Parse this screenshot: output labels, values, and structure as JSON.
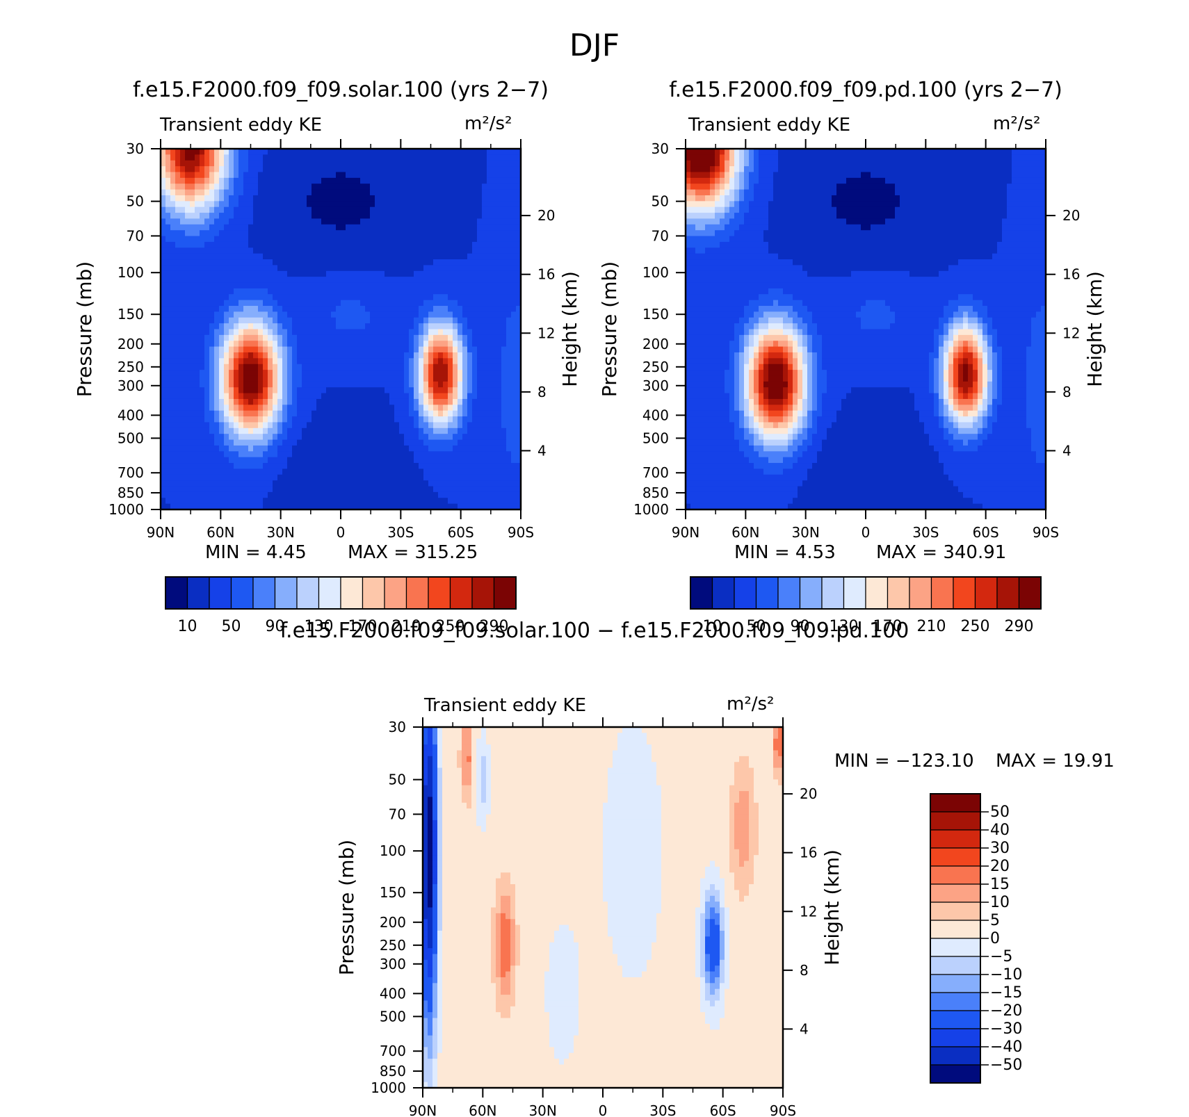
{
  "figure": {
    "title": "DJF"
  },
  "panels": [
    {
      "title": "f.e15.F2000.f09_f09.solar.100 (yrs 2−7)",
      "left_label": "Transient eddy KE",
      "right_label": "m²/s²",
      "min_text": "MIN =    4.45",
      "max_text": "MAX = 315.25"
    },
    {
      "title": "f.e15.F2000.f09_f09.pd.100 (yrs 2−7)",
      "left_label": "Transient eddy KE",
      "right_label": "m²/s²",
      "min_text": "MIN =    4.53",
      "max_text": "MAX = 340.91"
    },
    {
      "title": "f.e15.F2000.f09_f09.solar.100 − f.e15.F2000.f09_f09.pd.100",
      "left_label": "Transient eddy KE",
      "right_label": "m²/s²",
      "min_text": "MIN = −123.10",
      "max_text": "MAX =   19.91"
    }
  ],
  "chart_data": [
    {
      "type": "heatmap",
      "title": "f.e15.F2000.f09_f09.solar.100 (yrs 2−7)",
      "xlabel": "",
      "ylabel": "Pressure (mb)",
      "y2label": "Height (km)",
      "x_ticks": [
        "90N",
        "60N",
        "30N",
        "0",
        "30S",
        "60S",
        "90S"
      ],
      "y_ticks": [
        30,
        50,
        70,
        100,
        150,
        200,
        250,
        300,
        400,
        500,
        700,
        850,
        1000
      ],
      "y2_ticks": [
        4,
        8,
        12,
        16,
        20
      ],
      "xlim": [
        90,
        -90
      ],
      "ylim": [
        1000,
        30
      ],
      "y_scale": "log",
      "min": 4.45,
      "max": 315.25,
      "colorbar_levels": [
        10,
        50,
        90,
        130,
        170,
        210,
        250,
        290
      ],
      "features": [
        {
          "lat": 75,
          "p": 30,
          "value": 300
        },
        {
          "lat": 45,
          "p": 280,
          "value": 315
        },
        {
          "lat": -50,
          "p": 270,
          "value": 290
        },
        {
          "lat": 0,
          "p": 50,
          "value": 5
        },
        {
          "lat": 0,
          "p": 700,
          "value": 10
        }
      ]
    },
    {
      "type": "heatmap",
      "title": "f.e15.F2000.f09_f09.pd.100 (yrs 2−7)",
      "xlabel": "",
      "ylabel": "Pressure (mb)",
      "y2label": "Height (km)",
      "x_ticks": [
        "90N",
        "60N",
        "30N",
        "0",
        "30S",
        "60S",
        "90S"
      ],
      "y_ticks": [
        30,
        50,
        70,
        100,
        150,
        200,
        250,
        300,
        400,
        500,
        700,
        850,
        1000
      ],
      "y2_ticks": [
        4,
        8,
        12,
        16,
        20
      ],
      "xlim": [
        90,
        -90
      ],
      "ylim": [
        1000,
        30
      ],
      "y_scale": "log",
      "min": 4.53,
      "max": 340.91,
      "colorbar_levels": [
        10,
        50,
        90,
        130,
        170,
        210,
        250,
        290
      ],
      "features": [
        {
          "lat": 82,
          "p": 30,
          "value": 340
        },
        {
          "lat": 45,
          "p": 290,
          "value": 320
        },
        {
          "lat": -50,
          "p": 270,
          "value": 300
        },
        {
          "lat": 0,
          "p": 50,
          "value": 5
        },
        {
          "lat": 0,
          "p": 700,
          "value": 10
        }
      ]
    },
    {
      "type": "heatmap",
      "title": "f.e15.F2000.f09_f09.solar.100 − f.e15.F2000.f09_f09.pd.100",
      "xlabel": "",
      "ylabel": "Pressure (mb)",
      "y2label": "Height (km)",
      "x_ticks": [
        "90N",
        "60N",
        "30N",
        "0",
        "30S",
        "60S",
        "90S"
      ],
      "y_ticks": [
        30,
        50,
        70,
        100,
        150,
        200,
        250,
        300,
        400,
        500,
        700,
        850,
        1000
      ],
      "y2_ticks": [
        4,
        8,
        12,
        16,
        20
      ],
      "xlim": [
        90,
        -90
      ],
      "ylim": [
        1000,
        30
      ],
      "y_scale": "log",
      "min": -123.1,
      "max": 19.91,
      "colorbar_levels": [
        50,
        40,
        30,
        20,
        15,
        10,
        5,
        0,
        -5,
        -10,
        -15,
        -20,
        -30,
        -40,
        -50
      ],
      "colorbar_labels": [
        "50",
        "40",
        "30",
        "20",
        "15",
        "10",
        "5",
        "0",
        "−5",
        "−10",
        "−15",
        "−20",
        "−30",
        "−40",
        "−50"
      ],
      "features": [
        {
          "lat": 87,
          "p": 100,
          "value": -60
        },
        {
          "lat": 68,
          "p": 40,
          "value": 15
        },
        {
          "lat": 49,
          "p": 250,
          "value": 18
        },
        {
          "lat": -55,
          "p": 250,
          "value": -30
        },
        {
          "lat": -70,
          "p": 80,
          "value": 12
        },
        {
          "lat": -88,
          "p": 35,
          "value": 18
        }
      ]
    }
  ],
  "colors": {
    "kelvin_scale": [
      "#000b7d",
      "#0a2ec2",
      "#1541e8",
      "#1e58f2",
      "#4a80fa",
      "#86aefc",
      "#bbd1fd",
      "#dfebfe",
      "#fde8d6",
      "#fdc7aa",
      "#fca385",
      "#f97450",
      "#f2461e",
      "#d3280f",
      "#a61407",
      "#7b0404"
    ],
    "diff_scale": [
      "#7b0404",
      "#a61407",
      "#d3280f",
      "#f2461e",
      "#f97450",
      "#fca385",
      "#fdc7aa",
      "#fde8d6",
      "#dfebfe",
      "#bbd1fd",
      "#86aefc",
      "#4a80fa",
      "#1e58f2",
      "#1541e8",
      "#0a2ec2",
      "#000b7d"
    ]
  }
}
